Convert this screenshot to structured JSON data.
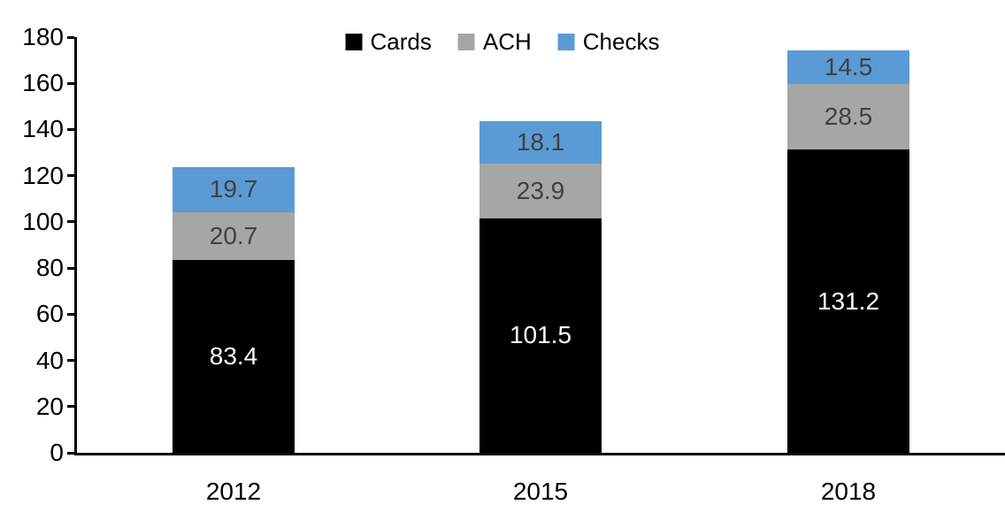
{
  "chart_data": {
    "type": "bar",
    "stacked": true,
    "title": "",
    "categories": [
      "2012",
      "2015",
      "2018"
    ],
    "series": [
      {
        "name": "Cards",
        "color": "#000000",
        "label_color": "#ffffff",
        "values": [
          83.4,
          101.5,
          131.2
        ],
        "labels": [
          "83.4",
          "101.5",
          "131.2"
        ]
      },
      {
        "name": "ACH",
        "color": "#a6a6a6",
        "label_color": "#404040",
        "values": [
          20.7,
          23.9,
          28.5
        ],
        "labels": [
          "20.7",
          "23.9",
          "28.5"
        ]
      },
      {
        "name": "Checks",
        "color": "#5b9bd5",
        "label_color": "#404040",
        "values": [
          19.7,
          18.1,
          14.5
        ],
        "labels": [
          "19.7",
          "18.1",
          "14.5"
        ]
      }
    ],
    "y_axis": {
      "min": 0,
      "max": 180,
      "step": 20,
      "tick_labels": [
        "0",
        "20",
        "40",
        "60",
        "80",
        "100",
        "120",
        "140",
        "160",
        "180"
      ]
    },
    "legend": {
      "position": "top",
      "entries": [
        "Cards",
        "ACH",
        "Checks"
      ]
    },
    "grid": false,
    "axis_color": "#000000",
    "background": "#ffffff"
  }
}
